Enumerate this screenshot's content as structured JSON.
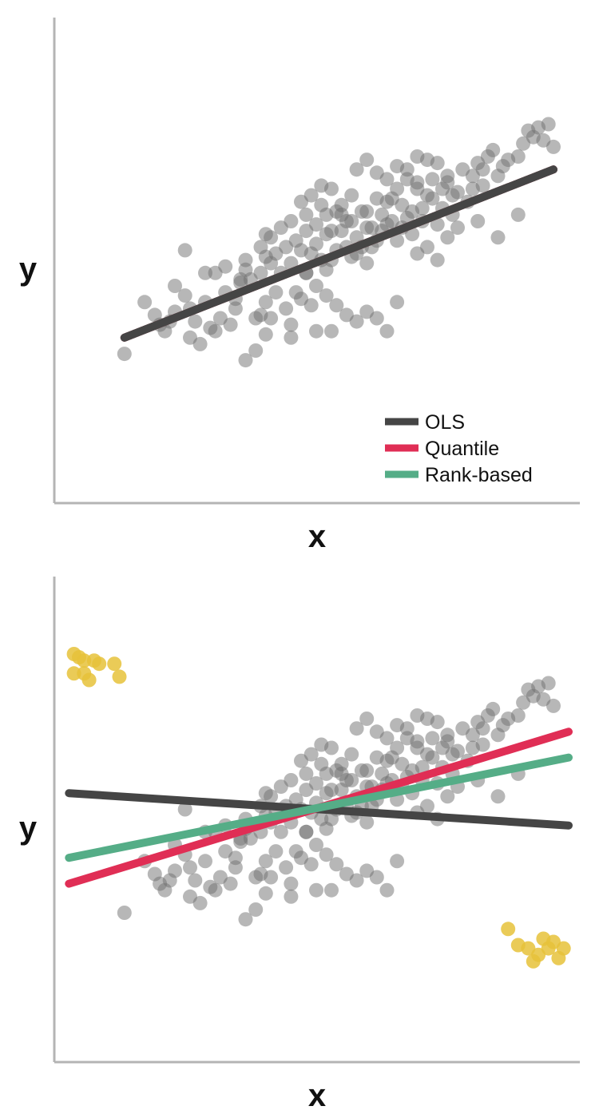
{
  "colors": {
    "background": "#ffffff",
    "axis": "#b4b4b4",
    "point": "#6f6f6f",
    "outlier": "#e6c23a",
    "ols": "#454545",
    "quantile": "#e02e55",
    "rank_based": "#55ad87"
  },
  "legend": {
    "placement": "bottom-right",
    "items": [
      {
        "label": "OLS",
        "color": "#454545"
      },
      {
        "label": "Quantile",
        "color": "#e02e55"
      },
      {
        "label": "Rank-based",
        "color": "#55ad87"
      }
    ]
  },
  "chart_data": [
    {
      "type": "scatter",
      "xlabel": "x",
      "ylabel": "y",
      "xlim": [
        0,
        100
      ],
      "ylim": [
        0,
        100
      ],
      "grid": false,
      "ticks": false,
      "legend": "bottom-right",
      "points": [
        [
          12,
          19
        ],
        [
          16,
          35
        ],
        [
          22,
          40
        ],
        [
          24,
          51
        ],
        [
          28,
          44
        ],
        [
          30,
          44
        ],
        [
          32,
          46
        ],
        [
          34,
          36
        ],
        [
          35,
          42
        ],
        [
          36,
          48
        ],
        [
          38,
          30
        ],
        [
          39,
          31
        ],
        [
          40,
          35
        ],
        [
          41,
          30
        ],
        [
          40,
          49
        ],
        [
          41,
          47
        ],
        [
          42,
          38
        ],
        [
          43,
          44
        ],
        [
          44,
          33
        ],
        [
          45,
          24
        ],
        [
          46,
          38
        ],
        [
          47,
          36
        ],
        [
          48,
          44
        ],
        [
          48,
          62
        ],
        [
          49,
          34
        ],
        [
          50,
          53
        ],
        [
          51,
          65
        ],
        [
          52,
          45
        ],
        [
          52,
          56
        ],
        [
          53,
          48
        ],
        [
          54,
          51
        ],
        [
          55,
          57
        ],
        [
          56,
          52
        ],
        [
          57,
          49
        ],
        [
          57,
          60
        ],
        [
          58,
          55
        ],
        [
          59,
          63
        ],
        [
          60,
          47
        ],
        [
          60,
          58
        ],
        [
          61,
          52
        ],
        [
          62,
          54
        ],
        [
          63,
          62
        ],
        [
          64,
          59
        ],
        [
          65,
          67
        ],
        [
          66,
          54
        ],
        [
          67,
          65
        ],
        [
          68,
          61
        ],
        [
          69,
          56
        ],
        [
          70,
          70
        ],
        [
          71,
          64
        ],
        [
          72,
          68
        ],
        [
          73,
          73
        ],
        [
          74,
          59
        ],
        [
          75,
          70
        ],
        [
          76,
          72
        ],
        [
          77,
          62
        ],
        [
          78,
          69
        ],
        [
          80,
          66
        ],
        [
          81,
          74
        ],
        [
          82,
          78
        ],
        [
          83,
          71
        ],
        [
          84,
          80
        ],
        [
          85,
          82
        ],
        [
          87,
          77
        ],
        [
          88,
          79
        ],
        [
          90,
          80
        ],
        [
          91,
          84
        ],
        [
          92,
          88
        ],
        [
          93,
          86
        ],
        [
          94,
          89
        ],
        [
          95,
          85
        ],
        [
          96,
          90
        ],
        [
          97,
          83
        ],
        [
          60,
          63
        ],
        [
          62,
          67
        ],
        [
          64,
          66
        ],
        [
          66,
          70
        ],
        [
          68,
          73
        ],
        [
          70,
          72
        ],
        [
          56,
          60
        ],
        [
          54,
          63
        ],
        [
          52,
          62
        ],
        [
          50,
          59
        ],
        [
          48,
          57
        ],
        [
          46,
          54
        ],
        [
          44,
          52
        ],
        [
          42,
          50
        ],
        [
          40,
          56
        ],
        [
          39,
          44
        ],
        [
          37,
          42
        ],
        [
          35,
          41
        ],
        [
          34,
          33
        ],
        [
          33,
          28
        ],
        [
          31,
          30
        ],
        [
          30,
          26
        ],
        [
          29,
          27
        ],
        [
          27,
          22
        ],
        [
          26,
          29
        ],
        [
          25,
          33
        ],
        [
          24,
          37
        ],
        [
          22,
          32
        ],
        [
          21,
          29
        ],
        [
          20,
          26
        ],
        [
          19,
          28
        ],
        [
          18,
          31
        ],
        [
          25,
          24
        ],
        [
          28,
          35
        ],
        [
          32,
          38
        ],
        [
          36,
          45
        ],
        [
          45,
          47
        ],
        [
          47,
          51
        ],
        [
          49,
          50
        ],
        [
          51,
          48
        ],
        [
          53,
          57
        ],
        [
          55,
          62
        ],
        [
          58,
          50
        ],
        [
          59,
          52
        ],
        [
          61,
          58
        ],
        [
          63,
          57
        ],
        [
          65,
          60
        ],
        [
          67,
          58
        ],
        [
          69,
          63
        ],
        [
          71,
          60
        ],
        [
          73,
          67
        ],
        [
          75,
          64
        ],
        [
          77,
          68
        ],
        [
          79,
          76
        ],
        [
          81,
          70
        ],
        [
          83,
          76
        ],
        [
          86,
          74
        ],
        [
          58,
          76
        ],
        [
          60,
          79
        ],
        [
          62,
          75
        ],
        [
          64,
          73
        ],
        [
          66,
          77
        ],
        [
          68,
          76
        ],
        [
          70,
          80
        ],
        [
          72,
          79
        ],
        [
          74,
          78
        ],
        [
          76,
          74
        ],
        [
          55,
          65
        ],
        [
          57,
          68
        ],
        [
          53,
          70
        ],
        [
          51,
          71
        ],
        [
          49,
          68
        ],
        [
          47,
          66
        ],
        [
          45,
          60
        ],
        [
          43,
          58
        ],
        [
          41,
          55
        ],
        [
          39,
          52
        ],
        [
          48,
          44
        ],
        [
          50,
          40
        ],
        [
          52,
          37
        ],
        [
          54,
          34
        ],
        [
          56,
          31
        ],
        [
          58,
          29
        ],
        [
          60,
          32
        ],
        [
          62,
          30
        ],
        [
          64,
          26
        ],
        [
          66,
          35
        ],
        [
          70,
          50
        ],
        [
          72,
          52
        ],
        [
          74,
          48
        ],
        [
          76,
          55
        ],
        [
          78,
          58
        ],
        [
          82,
          60
        ],
        [
          86,
          55
        ],
        [
          90,
          62
        ],
        [
          40,
          25
        ],
        [
          38,
          20
        ],
        [
          36,
          17
        ],
        [
          45,
          28
        ],
        [
          50,
          26
        ],
        [
          53,
          26
        ]
      ],
      "series": [
        {
          "name": "OLS",
          "x": [
            12,
            97
          ],
          "y": [
            24,
            76
          ]
        },
        {
          "name": "Quantile",
          "x": [
            12,
            97
          ],
          "y": [
            24,
            76
          ]
        },
        {
          "name": "Rank-based",
          "x": [
            12,
            97
          ],
          "y": [
            24,
            76
          ]
        }
      ]
    },
    {
      "type": "scatter",
      "xlabel": "x",
      "ylabel": "y",
      "xlim": [
        0,
        100
      ],
      "ylim": [
        0,
        100
      ],
      "grid": false,
      "ticks": false,
      "points": "same as first panel",
      "outliers": [
        [
          2,
          99
        ],
        [
          3,
          98
        ],
        [
          4,
          97
        ],
        [
          6,
          97
        ],
        [
          7,
          96
        ],
        [
          10,
          96
        ],
        [
          2,
          93
        ],
        [
          4,
          93
        ],
        [
          5,
          91
        ],
        [
          11,
          92
        ],
        [
          88,
          14
        ],
        [
          90,
          9
        ],
        [
          92,
          8
        ],
        [
          94,
          6
        ],
        [
          96,
          8
        ],
        [
          98,
          5
        ],
        [
          99,
          8
        ],
        [
          97,
          10
        ],
        [
          95,
          11
        ],
        [
          93,
          4
        ]
      ],
      "series": [
        {
          "name": "OLS",
          "x": [
            1,
            100
          ],
          "y": [
            56,
            46
          ]
        },
        {
          "name": "Quantile",
          "x": [
            1,
            100
          ],
          "y": [
            28,
            75
          ]
        },
        {
          "name": "Rank-based",
          "x": [
            1,
            100
          ],
          "y": [
            36,
            67
          ]
        }
      ]
    }
  ]
}
